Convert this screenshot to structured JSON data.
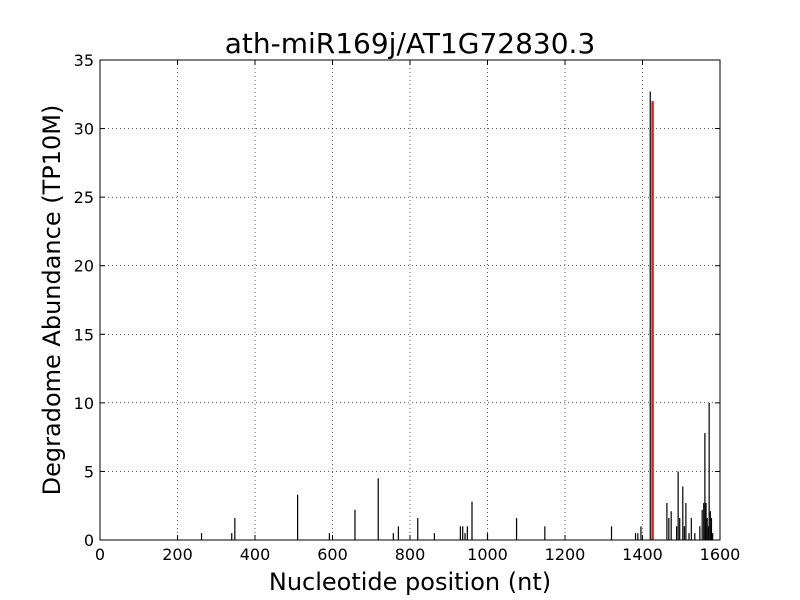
{
  "chart_data": {
    "type": "bar",
    "title": "ath-miR169j/AT1G72830.3",
    "xlabel": "Nucleotide position (nt)",
    "ylabel": "Degradome Abundance (TP10M)",
    "xlim": [
      0,
      1600
    ],
    "ylim": [
      0,
      35
    ],
    "xticks": [
      "0",
      "200",
      "400",
      "600",
      "800",
      "1000",
      "1200",
      "1400",
      "1600"
    ],
    "yticks": [
      "0",
      "5",
      "10",
      "15",
      "20",
      "25",
      "30",
      "35"
    ],
    "grid": true,
    "grid_style": "dotted",
    "series": [
      {
        "color": "#000000",
        "points": [
          {
            "x": 262,
            "y": 0.5
          },
          {
            "x": 340,
            "y": 0.5
          },
          {
            "x": 348,
            "y": 1.6
          },
          {
            "x": 510,
            "y": 3.3
          },
          {
            "x": 592,
            "y": 0.5
          },
          {
            "x": 658,
            "y": 2.2
          },
          {
            "x": 718,
            "y": 4.5
          },
          {
            "x": 757,
            "y": 0.5
          },
          {
            "x": 770,
            "y": 1.0
          },
          {
            "x": 820,
            "y": 1.6
          },
          {
            "x": 863,
            "y": 0.5
          },
          {
            "x": 930,
            "y": 1.0
          },
          {
            "x": 936,
            "y": 1.0
          },
          {
            "x": 942,
            "y": 0.5
          },
          {
            "x": 948,
            "y": 1.0
          },
          {
            "x": 960,
            "y": 2.8
          },
          {
            "x": 1000,
            "y": 0.5
          },
          {
            "x": 1075,
            "y": 1.6
          },
          {
            "x": 1148,
            "y": 1.0
          },
          {
            "x": 1320,
            "y": 1.0
          },
          {
            "x": 1382,
            "y": 0.5
          },
          {
            "x": 1388,
            "y": 0.5
          },
          {
            "x": 1396,
            "y": 1.0
          },
          {
            "x": 1420,
            "y": 32.7
          },
          {
            "x": 1463,
            "y": 2.7
          },
          {
            "x": 1468,
            "y": 1.6
          },
          {
            "x": 1474,
            "y": 2.1
          },
          {
            "x": 1488,
            "y": 1.0
          },
          {
            "x": 1492,
            "y": 5.0
          },
          {
            "x": 1496,
            "y": 1.6
          },
          {
            "x": 1504,
            "y": 3.9
          },
          {
            "x": 1508,
            "y": 1.0
          },
          {
            "x": 1512,
            "y": 2.7
          },
          {
            "x": 1520,
            "y": 0.5
          },
          {
            "x": 1526,
            "y": 1.6
          },
          {
            "x": 1535,
            "y": 0.5
          },
          {
            "x": 1548,
            "y": 1.0
          },
          {
            "x": 1554,
            "y": 2.2
          },
          {
            "x": 1558,
            "y": 2.7
          },
          {
            "x": 1561,
            "y": 7.8
          },
          {
            "x": 1564,
            "y": 2.7
          },
          {
            "x": 1567,
            "y": 1.6
          },
          {
            "x": 1570,
            "y": 1.0
          },
          {
            "x": 1572,
            "y": 10.0
          },
          {
            "x": 1575,
            "y": 2.1
          },
          {
            "x": 1578,
            "y": 1.6
          },
          {
            "x": 1581,
            "y": 0.5
          }
        ]
      },
      {
        "color": "#e31a1c",
        "points": [
          {
            "x": 1426,
            "y": 32.0
          }
        ]
      }
    ]
  }
}
